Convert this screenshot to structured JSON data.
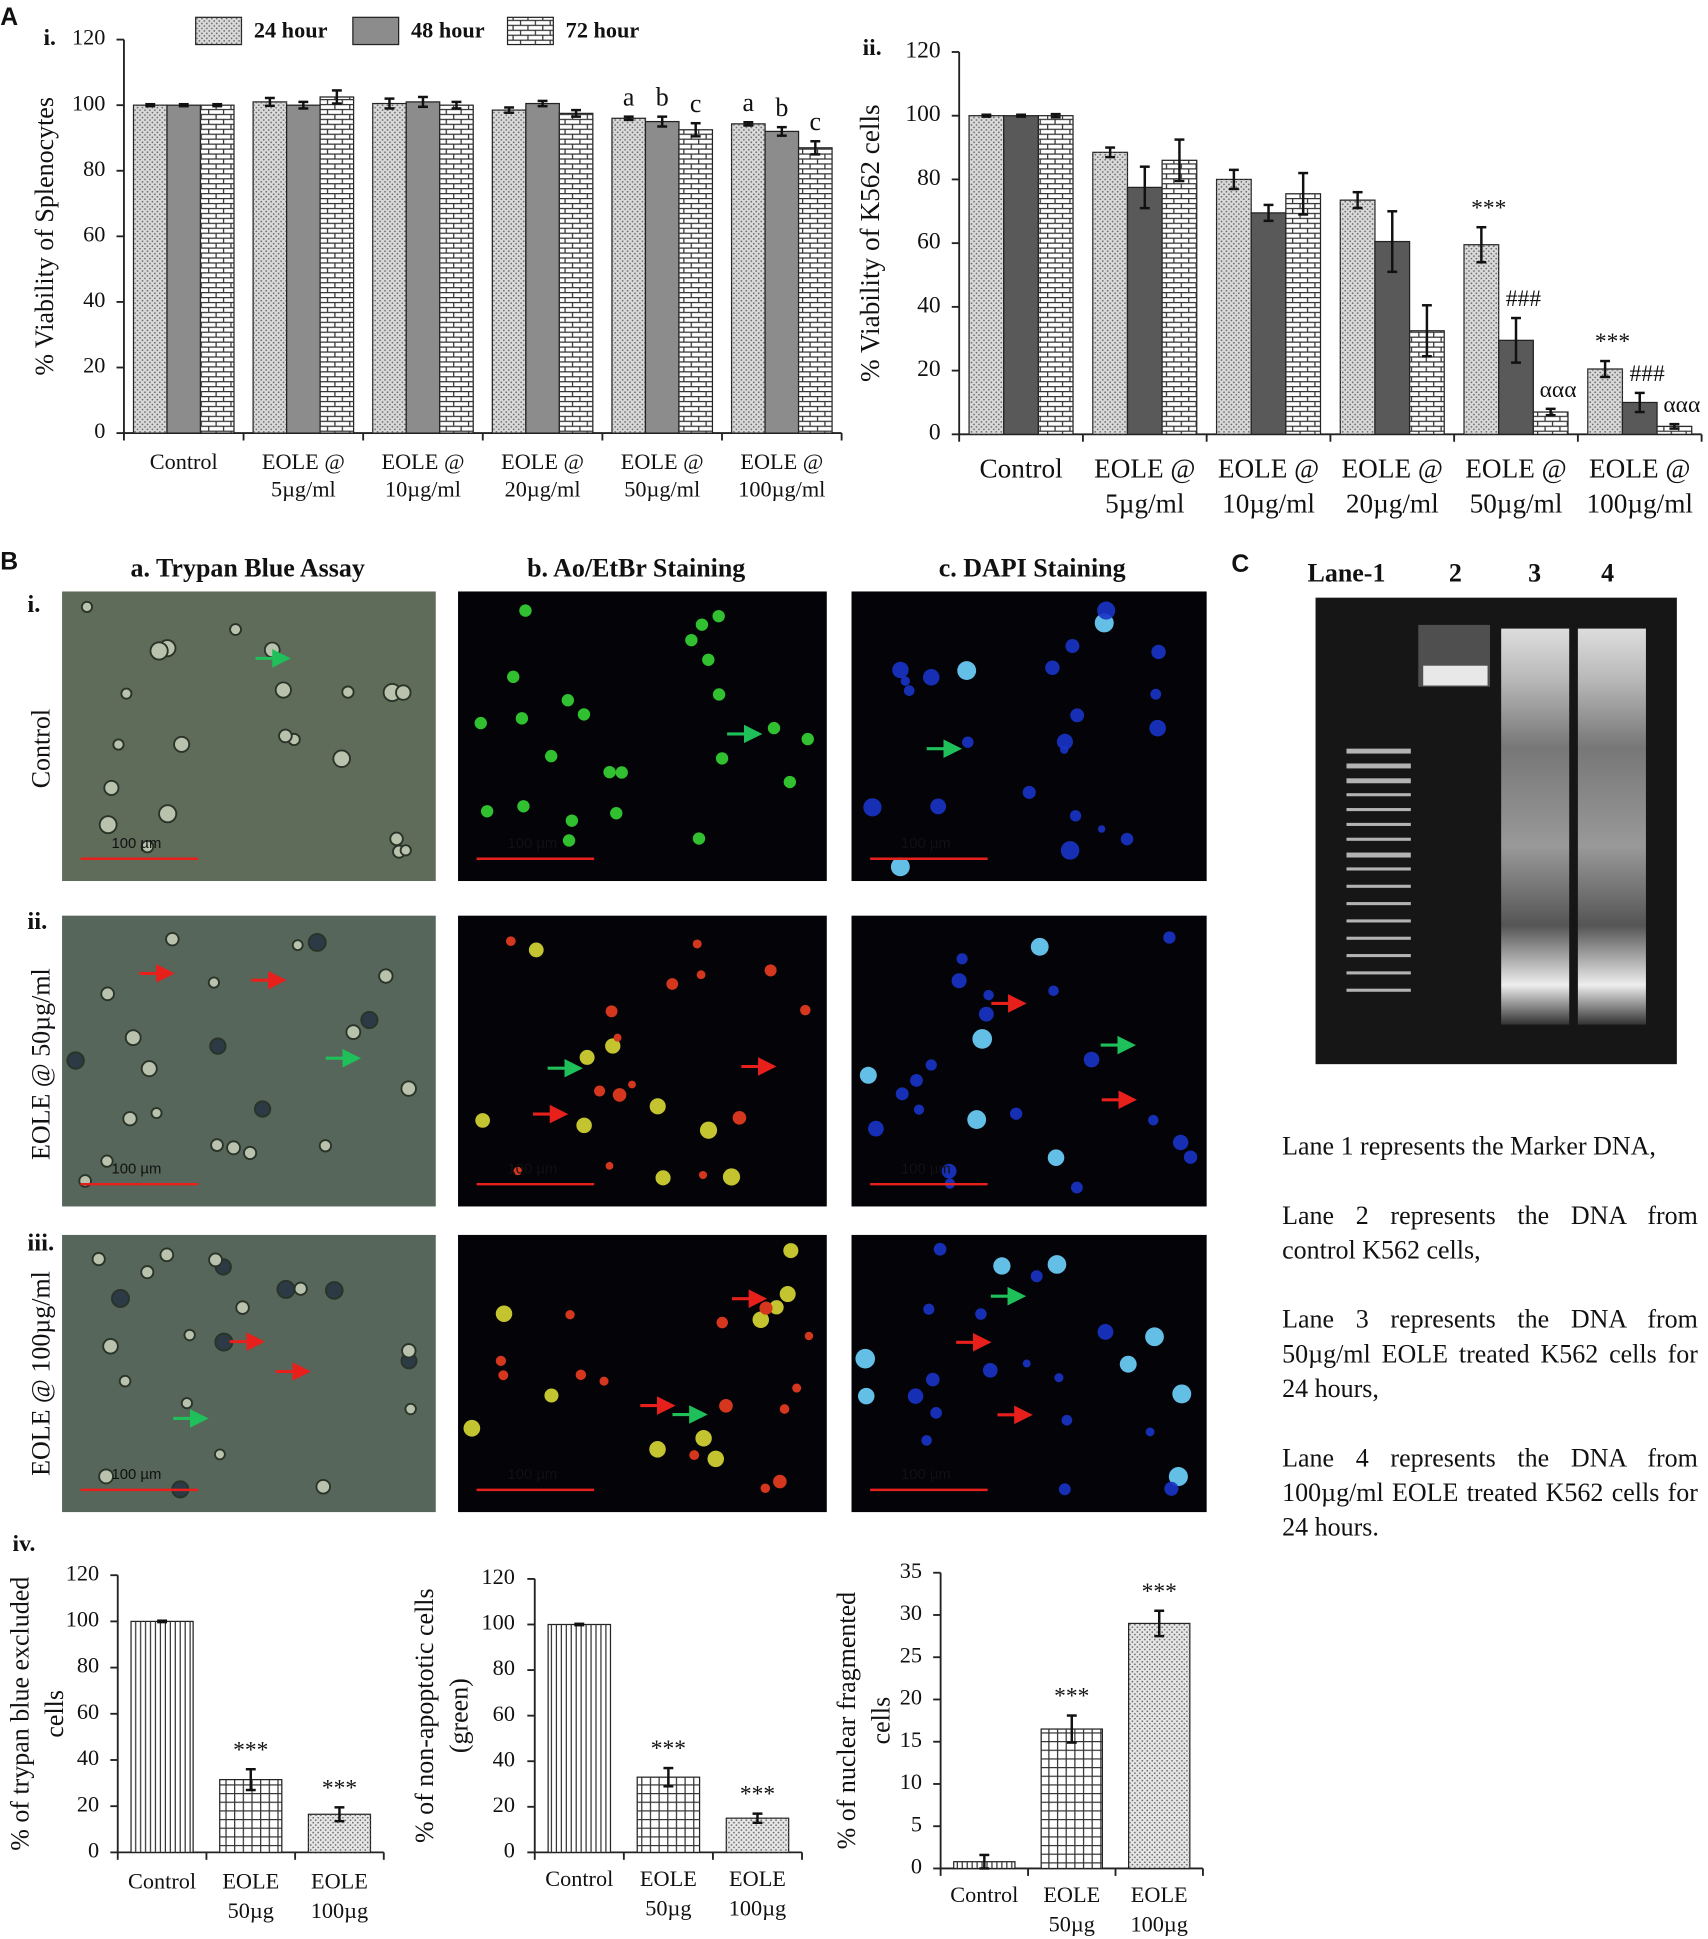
{
  "panel_labels": [
    "A",
    "B",
    "C"
  ],
  "chart_data": [
    {
      "type": "bar",
      "label": "i.",
      "y_label": [
        "% Viability of Splenocytes"
      ],
      "legend": "top",
      "categories": [
        [
          "Control"
        ],
        [
          "EOLE @",
          "5µg/ml"
        ],
        [
          "EOLE @",
          "10µg/ml"
        ],
        [
          "EOLE @",
          "20µg/ml"
        ],
        [
          "EOLE @",
          "50µg/ml"
        ],
        [
          "EOLE @",
          "100µg/ml"
        ]
      ],
      "series": [
        {
          "name": "24 hour",
          "color": "#d9d9d9",
          "pattern": "dots",
          "values": [
            100,
            101,
            100.5,
            98.5,
            96,
            94.3
          ],
          "errors": [
            0.3,
            1.2,
            1.5,
            0.8,
            0.5,
            0.5
          ],
          "annotations": [
            null,
            null,
            null,
            null,
            "a",
            "a"
          ]
        },
        {
          "name": "48 hour",
          "color": "#8c8c8c",
          "pattern": "solid",
          "values": [
            100,
            100,
            101,
            100.5,
            95,
            92
          ],
          "errors": [
            0.3,
            1,
            1.5,
            0.8,
            1.5,
            1.3
          ],
          "annotations": [
            null,
            null,
            null,
            null,
            "b",
            "b"
          ]
        },
        {
          "name": "72 hour",
          "color": "#ffffff",
          "pattern": "bricks",
          "values": [
            100,
            102.5,
            100,
            97.5,
            92.5,
            87
          ],
          "errors": [
            0.3,
            2,
            1,
            1,
            2,
            2
          ],
          "annotations": [
            null,
            null,
            null,
            null,
            "c",
            "c"
          ]
        }
      ],
      "ylim": [
        0,
        120
      ],
      "yticks": [
        0,
        20,
        40,
        60,
        80,
        100,
        120
      ]
    },
    {
      "type": "bar",
      "label": "ii.",
      "y_label": [
        "% Viability of K562 cells"
      ],
      "categories": [
        [
          "Control"
        ],
        [
          "EOLE @",
          "5µg/ml"
        ],
        [
          "EOLE @",
          "10µg/ml"
        ],
        [
          "EOLE @",
          "20µg/ml"
        ],
        [
          "EOLE @",
          "50µg/ml"
        ],
        [
          "EOLE @",
          "100µg/ml"
        ]
      ],
      "series": [
        {
          "name": "24 hour",
          "color": "#d9d9d9",
          "pattern": "dots",
          "values": [
            100,
            88.5,
            80,
            73.5,
            59.5,
            20.5
          ],
          "errors": [
            0.3,
            1.5,
            3,
            2.5,
            5.5,
            2.5
          ],
          "annotations": [
            null,
            null,
            null,
            null,
            "***",
            "***"
          ]
        },
        {
          "name": "48 hour",
          "color": "#595959",
          "pattern": "solid",
          "values": [
            100,
            77.5,
            69.5,
            60.5,
            29.5,
            10
          ],
          "errors": [
            0.3,
            6.5,
            2.5,
            9.5,
            7,
            3
          ],
          "annotations": [
            null,
            null,
            null,
            null,
            "###",
            "###"
          ]
        },
        {
          "name": "72 hour",
          "color": "#ffffff",
          "pattern": "bricks",
          "values": [
            100,
            86,
            75.5,
            32.5,
            7,
            2.5
          ],
          "errors": [
            0.5,
            6.5,
            6.5,
            8,
            1,
            0.7
          ],
          "annotations": [
            null,
            null,
            null,
            null,
            "ααα",
            "ααα"
          ]
        }
      ],
      "ylim": [
        0,
        120
      ],
      "yticks": [
        0,
        20,
        40,
        60,
        80,
        100,
        120
      ]
    },
    {
      "type": "bar",
      "label": "iv.",
      "y_label": [
        "% of trypan blue excluded",
        "cells"
      ],
      "categories": [
        [
          "Control"
        ],
        [
          "EOLE",
          "50µg"
        ],
        [
          "EOLE",
          "100µg"
        ]
      ],
      "values": [
        100,
        31.5,
        16.5
      ],
      "errors": [
        0.3,
        4.5,
        3
      ],
      "annotations": [
        null,
        "***",
        "***"
      ],
      "colors": [
        "#ffffff",
        "#ffffff",
        "#e6e6e6"
      ],
      "patterns": [
        "vlines",
        "grid",
        "dots"
      ],
      "ylim": [
        0,
        120
      ],
      "yticks": [
        0,
        20,
        40,
        60,
        80,
        100,
        120
      ]
    },
    {
      "type": "bar",
      "y_label": [
        "% of non-apoptotic  cells",
        "(green)"
      ],
      "categories": [
        [
          "Control"
        ],
        [
          "EOLE",
          "50µg"
        ],
        [
          "EOLE",
          "100µg"
        ]
      ],
      "values": [
        100,
        33,
        15
      ],
      "errors": [
        0.3,
        4,
        2
      ],
      "annotations": [
        null,
        "***",
        "***"
      ],
      "colors": [
        "#ffffff",
        "#ffffff",
        "#e6e6e6"
      ],
      "patterns": [
        "vlines",
        "grid",
        "dots"
      ],
      "ylim": [
        0,
        120
      ],
      "yticks": [
        0,
        20,
        40,
        60,
        80,
        100,
        120
      ]
    },
    {
      "type": "bar",
      "y_label": [
        "% of nuclear fragmented",
        "cells"
      ],
      "categories": [
        [
          "Control"
        ],
        [
          "EOLE",
          "50µg"
        ],
        [
          "EOLE",
          "100µg"
        ]
      ],
      "values": [
        0.8,
        16.5,
        29
      ],
      "errors": [
        0.8,
        1.6,
        1.5
      ],
      "annotations": [
        null,
        "***",
        "***"
      ],
      "colors": [
        "#ffffff",
        "#ffffff",
        "#e6e6e6"
      ],
      "patterns": [
        "vlines",
        "grid",
        "dots"
      ],
      "ylim": [
        0,
        35
      ],
      "yticks": [
        0,
        5,
        10,
        15,
        20,
        25,
        30,
        35
      ]
    }
  ],
  "micrographs": {
    "columns": [
      "a. Trypan Blue Assay",
      "b. Ao/EtBr Staining",
      "c. DAPI Staining"
    ],
    "rows": [
      {
        "label": "i.",
        "name": "Control"
      },
      {
        "label": "ii.",
        "name": "EOLE @ 50µg/ml"
      },
      {
        "label": "iii.",
        "name": "EOLE @ 100µg/ml"
      }
    ],
    "scale_bar": "100 µm"
  },
  "gel": {
    "lanes": [
      "Lane-1",
      "2",
      "3",
      "4"
    ],
    "descriptions": [
      "Lane 1 represents the Marker DNA,",
      "Lane 2 represents the DNA from control K562 cells,",
      "Lane 3 represents the DNA from 50µg/ml EOLE treated K562 cells for 24 hours,",
      "Lane 4 represents the DNA from 100µg/ml EOLE treated K562 cells for 24 hours."
    ]
  }
}
